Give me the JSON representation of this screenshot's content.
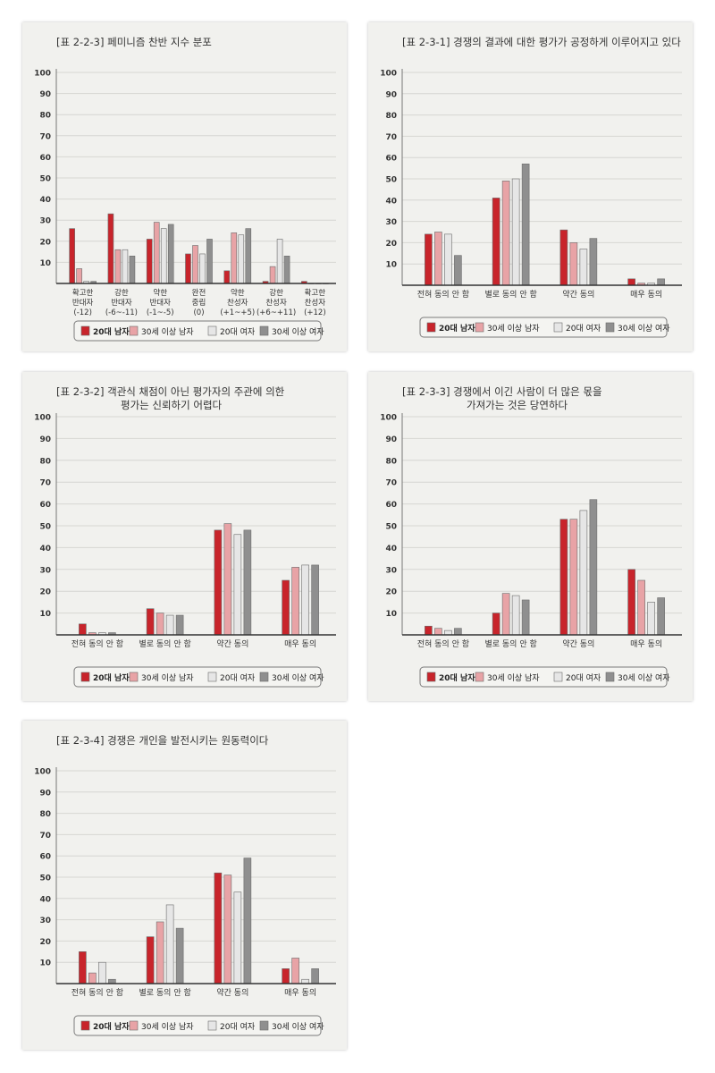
{
  "palette": {
    "s1": "#c8242b",
    "s2": "#e8a3a6",
    "s3": "#e6e6e6",
    "s4": "#8f8f8f"
  },
  "chart_data": [
    {
      "type": "bar",
      "id": "t223",
      "title_label": "[표 2-2-3]",
      "title_lines": [
        "페미니즘 찬반 지수 분포"
      ],
      "ylim": [
        0,
        100
      ],
      "yticks": [
        10,
        20,
        30,
        40,
        50,
        60,
        70,
        80,
        90,
        100
      ],
      "categories": [
        [
          "확고한",
          "반대자",
          "(-12)"
        ],
        [
          "강한",
          "반대자",
          "(-6~-11)"
        ],
        [
          "약한",
          "반대자",
          "(-1~-5)"
        ],
        [
          "완전",
          "중립",
          "(0)"
        ],
        [
          "약한",
          "찬성자",
          "(+1~+5)"
        ],
        [
          "강한",
          "찬성자",
          "(+6~+11)"
        ],
        [
          "확고한",
          "찬성자",
          "(+12)"
        ]
      ],
      "series": [
        {
          "name": "20대 남자",
          "values": [
            26,
            33,
            21,
            14,
            6,
            1,
            1
          ]
        },
        {
          "name": "30세 이상 남자",
          "values": [
            7,
            16,
            29,
            18,
            24,
            8,
            0
          ]
        },
        {
          "name": "20대 여자",
          "values": [
            1,
            16,
            26,
            14,
            23,
            21,
            0
          ]
        },
        {
          "name": "30세 이상 여자",
          "values": [
            1,
            13,
            28,
            21,
            26,
            13,
            0
          ]
        }
      ]
    },
    {
      "type": "bar",
      "id": "t231",
      "title_label": "[표 2-3-1]",
      "title_lines": [
        "경쟁의 결과에 대한 평가가 공정하게 이루어지고 있다"
      ],
      "ylim": [
        0,
        100
      ],
      "yticks": [
        10,
        20,
        30,
        40,
        50,
        60,
        70,
        80,
        90,
        100
      ],
      "categories": [
        [
          "전혀 동의 안 함"
        ],
        [
          "별로 동의 안 함"
        ],
        [
          "약간 동의"
        ],
        [
          "매우 동의"
        ]
      ],
      "series": [
        {
          "name": "20대 남자",
          "values": [
            24,
            41,
            26,
            3
          ]
        },
        {
          "name": "30세 이상 남자",
          "values": [
            25,
            49,
            20,
            1
          ]
        },
        {
          "name": "20대 여자",
          "values": [
            24,
            50,
            17,
            1
          ]
        },
        {
          "name": "30세 이상 여자",
          "values": [
            14,
            57,
            22,
            3
          ]
        }
      ]
    },
    {
      "type": "bar",
      "id": "t232",
      "title_label": "[표 2-3-2]",
      "title_lines": [
        "객관식 채점이 아닌 평가자의 주관에 의한",
        "평가는 신뢰하기 어렵다"
      ],
      "ylim": [
        0,
        100
      ],
      "yticks": [
        10,
        20,
        30,
        40,
        50,
        60,
        70,
        80,
        90,
        100
      ],
      "categories": [
        [
          "전혀 동의 안 함"
        ],
        [
          "별로 동의 안 함"
        ],
        [
          "약간 동의"
        ],
        [
          "매우 동의"
        ]
      ],
      "series": [
        {
          "name": "20대 남자",
          "values": [
            5,
            12,
            48,
            25
          ]
        },
        {
          "name": "30세 이상 남자",
          "values": [
            1,
            10,
            51,
            31
          ]
        },
        {
          "name": "20대 여자",
          "values": [
            1,
            9,
            46,
            32
          ]
        },
        {
          "name": "30세 이상 여자",
          "values": [
            1,
            9,
            48,
            32
          ]
        }
      ]
    },
    {
      "type": "bar",
      "id": "t233",
      "title_label": "[표 2-3-3]",
      "title_lines": [
        "경쟁에서 이긴 사람이 더 많은 몫을",
        "가져가는 것은 당연하다"
      ],
      "ylim": [
        0,
        100
      ],
      "yticks": [
        10,
        20,
        30,
        40,
        50,
        60,
        70,
        80,
        90,
        100
      ],
      "categories": [
        [
          "전혀 동의 안 함"
        ],
        [
          "별로 동의 안 함"
        ],
        [
          "약간 동의"
        ],
        [
          "매우 동의"
        ]
      ],
      "series": [
        {
          "name": "20대 남자",
          "values": [
            4,
            10,
            53,
            30
          ]
        },
        {
          "name": "30세 이상 남자",
          "values": [
            3,
            19,
            53,
            25
          ]
        },
        {
          "name": "20대 여자",
          "values": [
            2,
            18,
            57,
            15
          ]
        },
        {
          "name": "30세 이상 여자",
          "values": [
            3,
            16,
            62,
            17
          ]
        }
      ]
    },
    {
      "type": "bar",
      "id": "t234",
      "title_label": "[표 2-3-4]",
      "title_lines": [
        "경쟁은 개인을 발전시키는 원동력이다"
      ],
      "ylim": [
        0,
        100
      ],
      "yticks": [
        10,
        20,
        30,
        40,
        50,
        60,
        70,
        80,
        90,
        100
      ],
      "categories": [
        [
          "전혀 동의 안 함"
        ],
        [
          "별로 동의 안 함"
        ],
        [
          "약간 동의"
        ],
        [
          "매우 동의"
        ]
      ],
      "series": [
        {
          "name": "20대 남자",
          "values": [
            15,
            22,
            52,
            7
          ]
        },
        {
          "name": "30세 이상 남자",
          "values": [
            5,
            29,
            51,
            12
          ]
        },
        {
          "name": "20대 여자",
          "values": [
            10,
            37,
            43,
            2
          ]
        },
        {
          "name": "30세 이상 여자",
          "values": [
            2,
            26,
            59,
            7
          ]
        }
      ]
    }
  ]
}
